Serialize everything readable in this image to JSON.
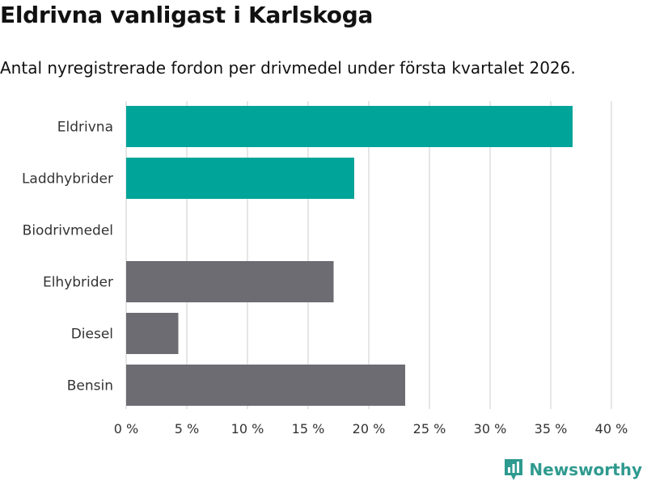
{
  "header": {
    "title": "Eldrivna vanligast i Karlskoga",
    "subtitle": "Antal nyregistrerade fordon per drivmedel under första kvartalet 2026."
  },
  "brand": {
    "name": "Newsworthy",
    "icon": "newsworthy-logo-icon"
  },
  "colors": {
    "highlight": "#00a499",
    "default": "#6d6c72",
    "grid": "#dddddd",
    "text": "#333333"
  },
  "chart_data": {
    "type": "bar",
    "orientation": "horizontal",
    "title": "Eldrivna vanligast i Karlskoga",
    "subtitle": "Antal nyregistrerade fordon per drivmedel under första kvartalet 2026.",
    "categories": [
      "Eldrivna",
      "Laddhybrider",
      "Biodrivmedel",
      "Elhybrider",
      "Diesel",
      "Bensin"
    ],
    "values": [
      36.8,
      18.8,
      0,
      17.1,
      4.3,
      23.0
    ],
    "highlighted": [
      true,
      true,
      false,
      false,
      false,
      false
    ],
    "xlim": [
      0,
      40
    ],
    "xticks": [
      0,
      5,
      10,
      15,
      20,
      25,
      30,
      35,
      40
    ],
    "xtick_labels": [
      "0 %",
      "5 %",
      "10 %",
      "15 %",
      "20 %",
      "25 %",
      "30 %",
      "35 %",
      "40 %"
    ],
    "xlabel": "",
    "ylabel": "",
    "grid": true
  }
}
